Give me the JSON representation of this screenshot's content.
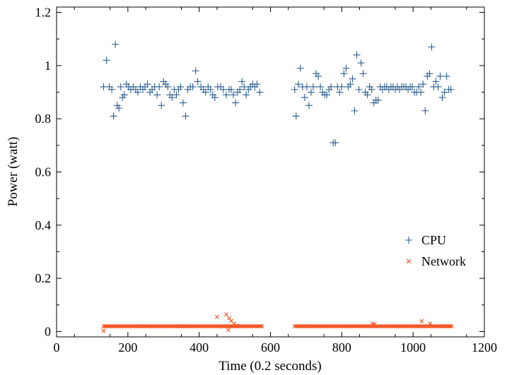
{
  "chart_data": {
    "type": "scatter",
    "title": "",
    "xlabel": "Time (0.2 seconds)",
    "ylabel": "Power (watt)",
    "xlim": [
      0,
      1200
    ],
    "ylim": [
      -0.02,
      1.22
    ],
    "x_ticks": [
      0,
      200,
      400,
      600,
      800,
      1000,
      1200
    ],
    "x_tick_labels": [
      "0",
      "200",
      "400",
      "600",
      "800",
      "1000",
      "1200"
    ],
    "y_ticks": [
      0,
      0.2,
      0.4,
      0.6,
      0.8,
      1.0,
      1.2
    ],
    "y_tick_labels": [
      "0",
      "0.2",
      "0.4",
      "0.6",
      "0.8",
      "1",
      "1.2"
    ],
    "grid": false,
    "legend": "center-right",
    "series": [
      {
        "name": "CPU",
        "marker": "plus",
        "color": "#2b5d8f",
        "points": [
          [
            132,
            0.92
          ],
          [
            140,
            1.02
          ],
          [
            148,
            0.92
          ],
          [
            155,
            0.91
          ],
          [
            160,
            0.81
          ],
          [
            165,
            1.08
          ],
          [
            170,
            0.85
          ],
          [
            175,
            0.84
          ],
          [
            180,
            0.92
          ],
          [
            185,
            0.88
          ],
          [
            190,
            0.89
          ],
          [
            196,
            0.93
          ],
          [
            202,
            0.92
          ],
          [
            208,
            0.91
          ],
          [
            215,
            0.92
          ],
          [
            222,
            0.91
          ],
          [
            228,
            0.9
          ],
          [
            235,
            0.92
          ],
          [
            242,
            0.91
          ],
          [
            248,
            0.92
          ],
          [
            255,
            0.93
          ],
          [
            262,
            0.9
          ],
          [
            268,
            0.91
          ],
          [
            275,
            0.92
          ],
          [
            282,
            0.89
          ],
          [
            288,
            0.92
          ],
          [
            294,
            0.85
          ],
          [
            300,
            0.94
          ],
          [
            306,
            0.93
          ],
          [
            312,
            0.92
          ],
          [
            318,
            0.89
          ],
          [
            324,
            0.88
          ],
          [
            330,
            0.91
          ],
          [
            336,
            0.89
          ],
          [
            342,
            0.91
          ],
          [
            348,
            0.92
          ],
          [
            355,
            0.86
          ],
          [
            362,
            0.81
          ],
          [
            368,
            0.91
          ],
          [
            375,
            0.92
          ],
          [
            382,
            0.92
          ],
          [
            390,
            0.98
          ],
          [
            396,
            0.94
          ],
          [
            405,
            0.92
          ],
          [
            412,
            0.91
          ],
          [
            418,
            0.9
          ],
          [
            425,
            0.92
          ],
          [
            432,
            0.91
          ],
          [
            438,
            0.89
          ],
          [
            444,
            0.88
          ],
          [
            452,
            0.92
          ],
          [
            460,
            0.92
          ],
          [
            468,
            0.91
          ],
          [
            476,
            0.89
          ],
          [
            484,
            0.91
          ],
          [
            490,
            0.91
          ],
          [
            496,
            0.89
          ],
          [
            502,
            0.86
          ],
          [
            508,
            0.9
          ],
          [
            514,
            0.91
          ],
          [
            520,
            0.94
          ],
          [
            526,
            0.92
          ],
          [
            532,
            0.89
          ],
          [
            538,
            0.91
          ],
          [
            544,
            0.92
          ],
          [
            550,
            0.93
          ],
          [
            556,
            0.92
          ],
          [
            562,
            0.93
          ],
          [
            570,
            0.9
          ],
          [
            668,
            0.91
          ],
          [
            672,
            0.81
          ],
          [
            678,
            0.93
          ],
          [
            684,
            0.99
          ],
          [
            690,
            0.92
          ],
          [
            696,
            0.88
          ],
          [
            702,
            0.92
          ],
          [
            708,
            0.85
          ],
          [
            714,
            0.9
          ],
          [
            720,
            0.92
          ],
          [
            728,
            0.97
          ],
          [
            734,
            0.96
          ],
          [
            740,
            0.92
          ],
          [
            746,
            0.9
          ],
          [
            752,
            0.89
          ],
          [
            758,
            0.89
          ],
          [
            764,
            0.91
          ],
          [
            770,
            0.92
          ],
          [
            776,
            0.71
          ],
          [
            782,
            0.71
          ],
          [
            788,
            0.92
          ],
          [
            794,
            0.9
          ],
          [
            800,
            0.92
          ],
          [
            806,
            0.97
          ],
          [
            812,
            0.99
          ],
          [
            818,
            0.92
          ],
          [
            824,
            0.93
          ],
          [
            830,
            0.95
          ],
          [
            836,
            0.83
          ],
          [
            842,
            1.04
          ],
          [
            848,
            0.91
          ],
          [
            854,
            1.01
          ],
          [
            860,
            0.97
          ],
          [
            866,
            0.9
          ],
          [
            872,
            0.89
          ],
          [
            878,
            0.92
          ],
          [
            884,
            0.91
          ],
          [
            890,
            0.86
          ],
          [
            896,
            0.87
          ],
          [
            902,
            0.87
          ],
          [
            908,
            0.92
          ],
          [
            914,
            0.91
          ],
          [
            920,
            0.92
          ],
          [
            926,
            0.92
          ],
          [
            932,
            0.91
          ],
          [
            938,
            0.92
          ],
          [
            944,
            0.92
          ],
          [
            950,
            0.91
          ],
          [
            956,
            0.92
          ],
          [
            962,
            0.91
          ],
          [
            968,
            0.92
          ],
          [
            974,
            0.92
          ],
          [
            980,
            0.92
          ],
          [
            986,
            0.91
          ],
          [
            992,
            0.92
          ],
          [
            998,
            0.92
          ],
          [
            1004,
            0.9
          ],
          [
            1010,
            0.9
          ],
          [
            1016,
            0.92
          ],
          [
            1022,
            0.9
          ],
          [
            1028,
            0.93
          ],
          [
            1034,
            0.83
          ],
          [
            1040,
            0.96
          ],
          [
            1046,
            0.97
          ],
          [
            1052,
            1.07
          ],
          [
            1058,
            0.92
          ],
          [
            1064,
            0.94
          ],
          [
            1070,
            0.92
          ],
          [
            1076,
            0.96
          ],
          [
            1082,
            0.88
          ],
          [
            1088,
            0.9
          ],
          [
            1094,
            0.96
          ],
          [
            1100,
            0.91
          ],
          [
            1106,
            0.91
          ]
        ]
      },
      {
        "name": "Network",
        "marker": "x",
        "color": "#f4511e",
        "points": [
          [
            132,
            0.003
          ],
          [
            450,
            0.055
          ],
          [
            476,
            0.064
          ],
          [
            484,
            0.05
          ],
          [
            490,
            0.04
          ],
          [
            498,
            0.03
          ],
          [
            482,
            0.006
          ],
          [
            506,
            0.022
          ],
          [
            886,
            0.03
          ],
          [
            892,
            0.028
          ],
          [
            1024,
            0.039
          ],
          [
            1048,
            0.03
          ],
          [
            1100,
            0.02
          ]
        ],
        "baseline": {
          "value": 0.02,
          "x_ranges": [
            [
              132,
              576
            ],
            [
              668,
              1108
            ]
          ]
        }
      }
    ]
  }
}
